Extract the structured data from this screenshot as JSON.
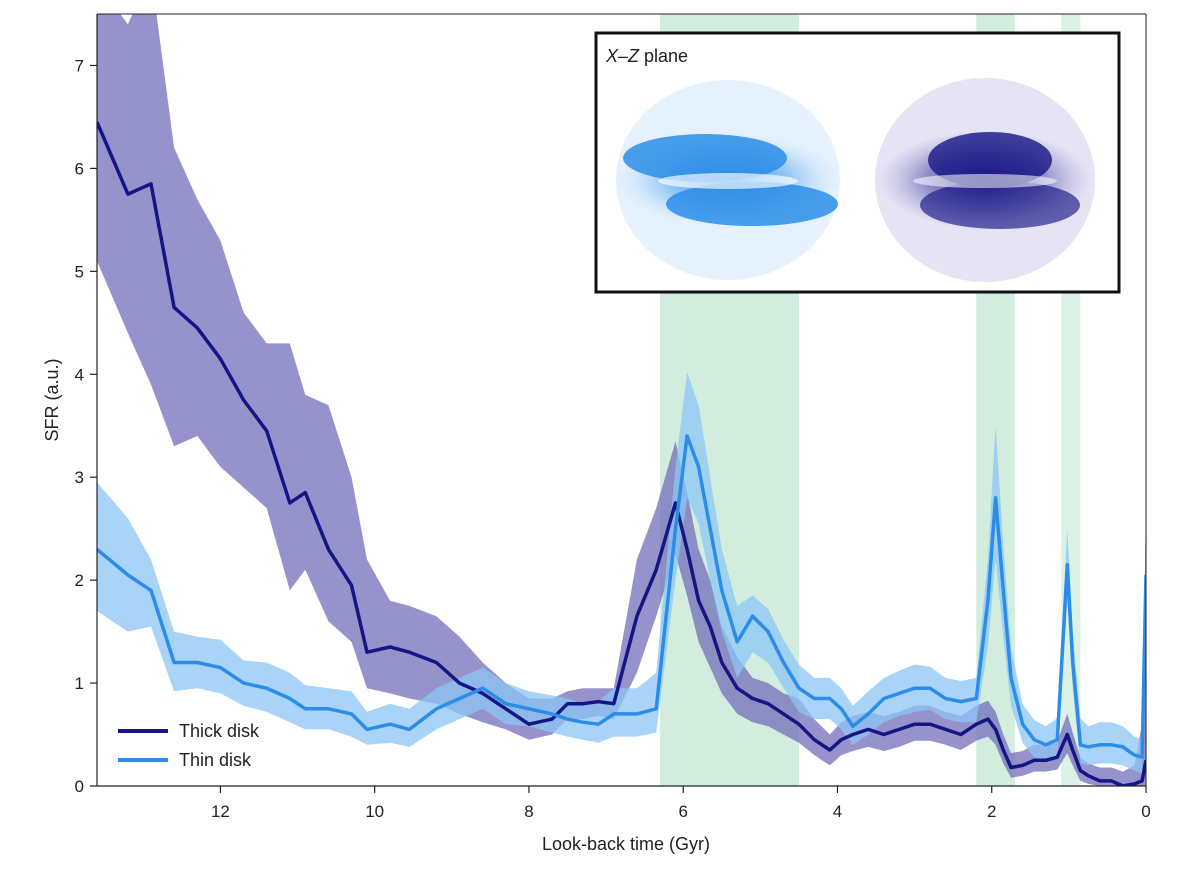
{
  "colors": {
    "thick": "#161585",
    "thick_band": "#6e69b9",
    "thin": "#2b8de8",
    "thin_band": "#8cc6f5",
    "highlight": "#bfe6d0"
  },
  "chart_data": {
    "type": "line",
    "xlabel": "Look-back time (Gyr)",
    "ylabel": "SFR (a.u.)",
    "xlim": [
      13.6,
      0
    ],
    "ylim": [
      0,
      7.5
    ],
    "xticks": [
      12,
      10,
      8,
      6,
      4,
      2,
      0
    ],
    "yticks": [
      0,
      1,
      2,
      3,
      4,
      5,
      6,
      7
    ],
    "legend_position": "bottom-left",
    "highlight_bands": [
      {
        "from": 6.3,
        "to": 4.5
      },
      {
        "from": 2.2,
        "to": 1.7
      },
      {
        "from": 1.1,
        "to": 0.85
      }
    ],
    "inset": {
      "title_italic": "X–Z",
      "title_rest": " plane"
    },
    "series": [
      {
        "name": "Thick disk",
        "x": [
          13.6,
          13.2,
          12.9,
          12.6,
          12.3,
          12.0,
          11.7,
          11.4,
          11.1,
          10.9,
          10.6,
          10.3,
          10.1,
          9.8,
          9.55,
          9.2,
          8.9,
          8.6,
          8.3,
          8.0,
          7.7,
          7.5,
          7.3,
          7.1,
          6.9,
          6.6,
          6.35,
          6.1,
          5.95,
          5.8,
          5.65,
          5.5,
          5.3,
          5.1,
          4.9,
          4.7,
          4.5,
          4.3,
          4.1,
          3.95,
          3.8,
          3.6,
          3.4,
          3.2,
          3.0,
          2.8,
          2.6,
          2.4,
          2.2,
          2.05,
          1.95,
          1.85,
          1.75,
          1.6,
          1.45,
          1.3,
          1.15,
          1.02,
          0.95,
          0.85,
          0.75,
          0.6,
          0.45,
          0.3,
          0.15,
          0.05,
          0.0
        ],
        "y": [
          6.45,
          5.75,
          5.85,
          4.65,
          4.45,
          4.15,
          3.75,
          3.45,
          2.75,
          2.85,
          2.3,
          1.95,
          1.3,
          1.35,
          1.3,
          1.2,
          1.0,
          0.9,
          0.75,
          0.6,
          0.65,
          0.8,
          0.8,
          0.82,
          0.8,
          1.65,
          2.1,
          2.75,
          2.3,
          1.8,
          1.55,
          1.2,
          0.95,
          0.85,
          0.8,
          0.7,
          0.6,
          0.45,
          0.35,
          0.45,
          0.5,
          0.55,
          0.5,
          0.55,
          0.6,
          0.6,
          0.55,
          0.5,
          0.6,
          0.65,
          0.55,
          0.35,
          0.18,
          0.2,
          0.25,
          0.25,
          0.28,
          0.5,
          0.35,
          0.15,
          0.1,
          0.05,
          0.05,
          0.0,
          0.02,
          0.05,
          0.25
        ],
        "upper": [
          7.8,
          7.4,
          7.9,
          6.2,
          5.7,
          5.3,
          4.6,
          4.3,
          4.3,
          3.8,
          3.7,
          3.0,
          2.2,
          1.8,
          1.75,
          1.65,
          1.45,
          1.2,
          1.0,
          0.85,
          0.85,
          0.92,
          0.95,
          0.95,
          0.95,
          2.2,
          2.7,
          3.35,
          2.85,
          2.3,
          2.0,
          1.55,
          1.25,
          1.05,
          1.0,
          0.9,
          0.85,
          0.65,
          0.5,
          0.62,
          0.68,
          0.72,
          0.68,
          0.72,
          0.78,
          0.78,
          0.72,
          0.68,
          0.78,
          0.83,
          0.72,
          0.5,
          0.32,
          0.34,
          0.4,
          0.4,
          0.44,
          0.7,
          0.52,
          0.28,
          0.22,
          0.18,
          0.18,
          0.14,
          0.2,
          0.6,
          2.7
        ],
        "lower": [
          5.1,
          4.4,
          3.9,
          3.3,
          3.4,
          3.1,
          2.9,
          2.7,
          1.9,
          2.1,
          1.6,
          1.4,
          0.95,
          0.9,
          0.85,
          0.8,
          0.7,
          0.62,
          0.55,
          0.45,
          0.5,
          0.65,
          0.65,
          0.68,
          0.65,
          1.1,
          1.65,
          2.25,
          1.85,
          1.4,
          1.15,
          0.9,
          0.7,
          0.62,
          0.58,
          0.5,
          0.42,
          0.3,
          0.2,
          0.3,
          0.34,
          0.38,
          0.34,
          0.38,
          0.44,
          0.44,
          0.4,
          0.35,
          0.44,
          0.48,
          0.4,
          0.22,
          0.08,
          0.1,
          0.14,
          0.14,
          0.16,
          0.32,
          0.2,
          0.05,
          0.02,
          0.0,
          0.0,
          0.0,
          0.0,
          0.0,
          0.0
        ]
      },
      {
        "name": "Thin disk",
        "x": [
          13.6,
          13.2,
          12.9,
          12.6,
          12.3,
          12.0,
          11.7,
          11.4,
          11.1,
          10.9,
          10.6,
          10.3,
          10.1,
          9.8,
          9.55,
          9.2,
          8.9,
          8.6,
          8.3,
          8.0,
          7.7,
          7.5,
          7.3,
          7.1,
          6.9,
          6.6,
          6.35,
          6.1,
          5.95,
          5.8,
          5.65,
          5.5,
          5.3,
          5.1,
          4.9,
          4.7,
          4.5,
          4.3,
          4.1,
          3.95,
          3.8,
          3.6,
          3.4,
          3.2,
          3.0,
          2.8,
          2.6,
          2.4,
          2.2,
          2.05,
          1.95,
          1.85,
          1.75,
          1.6,
          1.45,
          1.3,
          1.15,
          1.02,
          0.95,
          0.85,
          0.75,
          0.6,
          0.45,
          0.3,
          0.15,
          0.05,
          0.0
        ],
        "y": [
          2.3,
          2.05,
          1.9,
          1.2,
          1.2,
          1.15,
          1.0,
          0.95,
          0.85,
          0.75,
          0.75,
          0.7,
          0.55,
          0.6,
          0.55,
          0.75,
          0.85,
          0.95,
          0.8,
          0.75,
          0.7,
          0.65,
          0.62,
          0.6,
          0.7,
          0.7,
          0.75,
          2.5,
          3.4,
          3.1,
          2.5,
          1.9,
          1.4,
          1.65,
          1.5,
          1.2,
          0.95,
          0.85,
          0.85,
          0.75,
          0.58,
          0.7,
          0.85,
          0.9,
          0.95,
          0.95,
          0.85,
          0.82,
          0.85,
          1.8,
          2.8,
          1.9,
          1.05,
          0.6,
          0.45,
          0.4,
          0.45,
          2.15,
          1.2,
          0.4,
          0.38,
          0.4,
          0.4,
          0.38,
          0.3,
          0.28,
          2.05
        ],
        "upper": [
          2.95,
          2.6,
          2.2,
          1.5,
          1.45,
          1.42,
          1.22,
          1.2,
          1.1,
          0.98,
          0.95,
          0.92,
          0.72,
          0.8,
          0.75,
          0.95,
          1.05,
          1.15,
          1.0,
          0.92,
          0.88,
          0.85,
          0.8,
          0.82,
          0.95,
          0.95,
          1.1,
          3.1,
          4.02,
          3.7,
          3.0,
          2.3,
          1.75,
          1.85,
          1.72,
          1.42,
          1.18,
          1.05,
          1.05,
          0.95,
          0.78,
          0.92,
          1.05,
          1.12,
          1.18,
          1.16,
          1.05,
          1.02,
          1.05,
          2.2,
          3.5,
          2.35,
          1.35,
          0.8,
          0.64,
          0.58,
          0.66,
          2.5,
          1.5,
          0.66,
          0.58,
          0.62,
          0.62,
          0.58,
          0.48,
          0.45,
          2.65
        ],
        "lower": [
          1.7,
          1.5,
          1.55,
          0.92,
          0.95,
          0.9,
          0.78,
          0.72,
          0.62,
          0.55,
          0.55,
          0.48,
          0.4,
          0.42,
          0.38,
          0.55,
          0.65,
          0.75,
          0.6,
          0.58,
          0.52,
          0.48,
          0.45,
          0.42,
          0.48,
          0.48,
          0.52,
          2.0,
          2.8,
          2.55,
          2.0,
          1.5,
          1.05,
          1.3,
          1.2,
          0.95,
          0.72,
          0.65,
          0.65,
          0.55,
          0.4,
          0.5,
          0.62,
          0.68,
          0.72,
          0.74,
          0.65,
          0.62,
          0.62,
          1.35,
          2.2,
          1.45,
          0.78,
          0.42,
          0.28,
          0.24,
          0.28,
          1.8,
          0.95,
          0.22,
          0.2,
          0.22,
          0.22,
          0.2,
          0.15,
          0.12,
          1.5
        ]
      }
    ]
  }
}
